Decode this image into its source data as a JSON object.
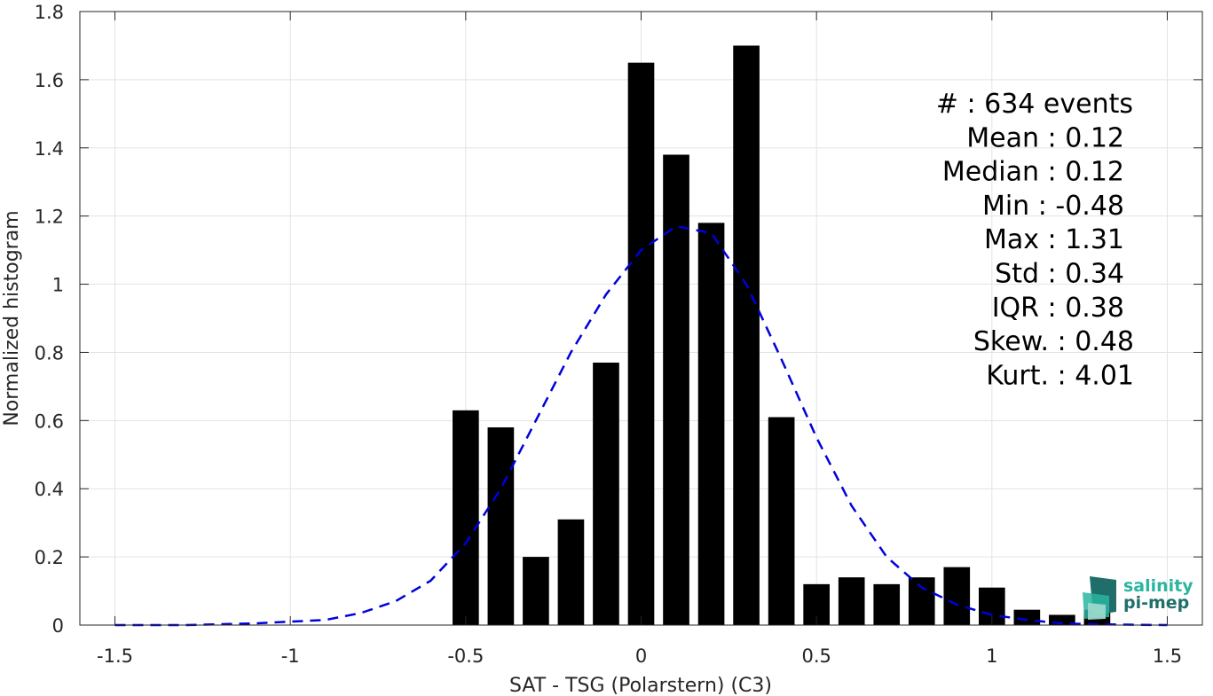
{
  "chart_data": {
    "type": "bar",
    "title": "",
    "xlabel": "SAT - TSG (Polarstern) (C3)",
    "ylabel": "Normalized histogram",
    "xlim": [
      -1.6,
      1.6
    ],
    "ylim": [
      0,
      1.8
    ],
    "grid": true,
    "xticks": [
      -1.5,
      -1,
      -0.5,
      0,
      0.5,
      1,
      1.5
    ],
    "xtick_labels": [
      "-1.5",
      "-1",
      "-0.5",
      "0",
      "0.5",
      "1",
      "1.5"
    ],
    "yticks": [
      0,
      0.2,
      0.4,
      0.6,
      0.8,
      1,
      1.2,
      1.4,
      1.6,
      1.8
    ],
    "ytick_labels": [
      "0",
      "0.2",
      "0.4",
      "0.6",
      "0.8",
      "1",
      "1.2",
      "1.4",
      "1.6",
      "1.8"
    ],
    "bar_width": 0.075,
    "bar_color": "#000000",
    "bars": {
      "x": [
        -0.5,
        -0.4,
        -0.3,
        -0.2,
        -0.1,
        0.0,
        0.1,
        0.2,
        0.3,
        0.4,
        0.5,
        0.6,
        0.7,
        0.8,
        0.9,
        1.0,
        1.1,
        1.2,
        1.3
      ],
      "values": [
        0.63,
        0.58,
        0.2,
        0.31,
        0.77,
        1.65,
        1.38,
        1.18,
        1.7,
        0.61,
        0.12,
        0.14,
        0.12,
        0.14,
        0.17,
        0.11,
        0.045,
        0.03,
        0.045
      ]
    },
    "fit_curve": {
      "style": "dashed",
      "color": "#0000dd",
      "x": [
        -1.5,
        -1.3,
        -1.1,
        -0.9,
        -0.8,
        -0.7,
        -0.6,
        -0.5,
        -0.4,
        -0.3,
        -0.2,
        -0.1,
        0.0,
        0.1,
        0.2,
        0.3,
        0.4,
        0.5,
        0.6,
        0.7,
        0.8,
        0.9,
        1.0,
        1.1,
        1.2,
        1.3,
        1.5
      ],
      "values": [
        0.0,
        0.0,
        0.005,
        0.015,
        0.035,
        0.07,
        0.13,
        0.24,
        0.4,
        0.6,
        0.8,
        0.97,
        1.1,
        1.17,
        1.15,
        1.0,
        0.78,
        0.55,
        0.35,
        0.2,
        0.11,
        0.06,
        0.03,
        0.015,
        0.005,
        0.002,
        0.0
      ]
    }
  },
  "stats": {
    "lines": [
      "#  : 634 events",
      "Mean : 0.12",
      "Median : 0.12",
      "Min : -0.48",
      "Max : 1.31",
      "Std : 0.34",
      "IQR : 0.38",
      "Skew. : 0.48",
      "Kurt. : 4.01"
    ]
  },
  "logo": {
    "line1": "salinity",
    "line2": "pi-mep",
    "color1": "#2bb5a0",
    "color2": "#1f6e6a"
  }
}
